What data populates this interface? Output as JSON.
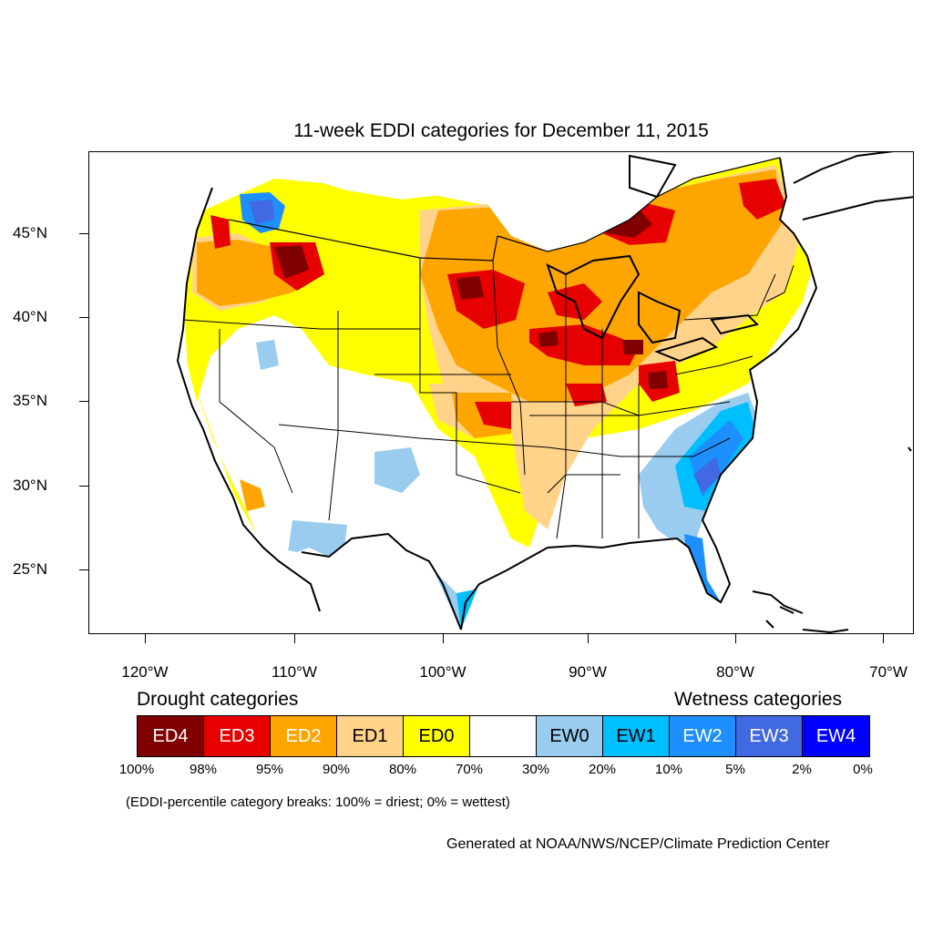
{
  "title": "11-week EDDI categories for December 11, 2015",
  "lat_labels": [
    "45°N",
    "40°N",
    "35°N",
    "30°N",
    "25°N"
  ],
  "lon_labels": [
    "120°W",
    "110°W",
    "100°W",
    "90°W",
    "80°W",
    "70°W"
  ],
  "legend": {
    "drought_heading": "Drought categories",
    "wetness_heading": "Wetness categories",
    "categories": [
      {
        "label": "ED4",
        "color": "#800000",
        "text_color": "#ffffff"
      },
      {
        "label": "ED3",
        "color": "#e60000",
        "text_color": "#ffffff"
      },
      {
        "label": "ED2",
        "color": "#ffa500",
        "text_color": "#ffffff"
      },
      {
        "label": "ED1",
        "color": "#ffd38a",
        "text_color": "#000000"
      },
      {
        "label": "ED0",
        "color": "#ffff00",
        "text_color": "#000000"
      },
      {
        "label": "",
        "color": "#ffffff",
        "text_color": "#000000"
      },
      {
        "label": "EW0",
        "color": "#99ccee",
        "text_color": "#000000"
      },
      {
        "label": "EW1",
        "color": "#00bfff",
        "text_color": "#000000"
      },
      {
        "label": "EW2",
        "color": "#1e8fff",
        "text_color": "#ffffff"
      },
      {
        "label": "EW3",
        "color": "#4169e1",
        "text_color": "#ffffff"
      },
      {
        "label": "EW4",
        "color": "#0000ff",
        "text_color": "#ffffff"
      }
    ],
    "percent_breaks": [
      "100%",
      "98%",
      "95%",
      "90%",
      "80%",
      "70%",
      "30%",
      "20%",
      "10%",
      "5%",
      "2%",
      "0%"
    ]
  },
  "note": "(EDDI-percentile category breaks: 100% = driest; 0% = wettest)",
  "credit": "Generated at NOAA/NWS/NCEP/Climate Prediction Center"
}
